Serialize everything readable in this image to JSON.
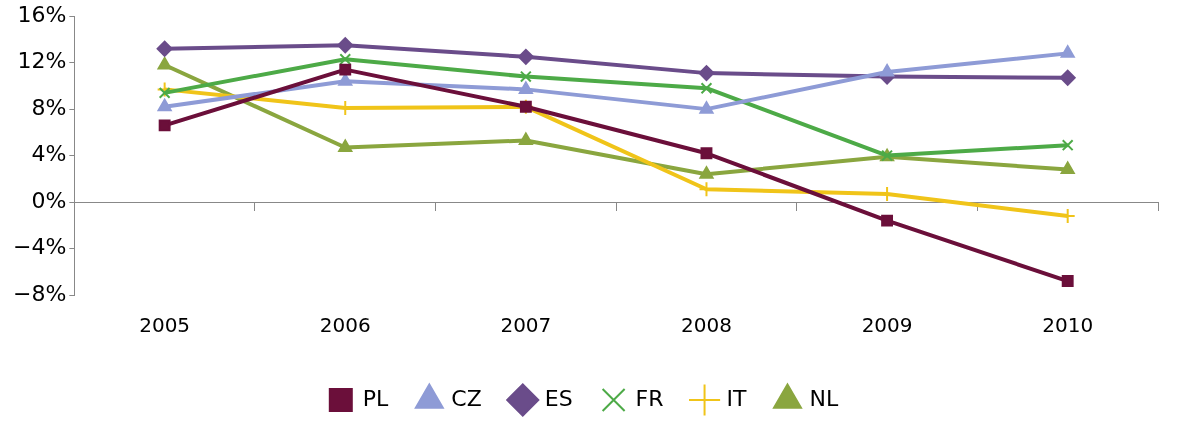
{
  "chart_data": {
    "type": "line",
    "categories": [
      "2005",
      "2006",
      "2007",
      "2008",
      "2009",
      "2010"
    ],
    "series": [
      {
        "name": "PL",
        "color": "#6b0f3a",
        "marker": "square",
        "values": [
          6.6,
          11.4,
          8.2,
          4.2,
          -1.6,
          -6.8
        ]
      },
      {
        "name": "CZ",
        "color": "#8e9bd6",
        "marker": "triangle",
        "values": [
          8.2,
          10.4,
          9.7,
          8.0,
          11.2,
          12.8
        ]
      },
      {
        "name": "ES",
        "color": "#6a4c8a",
        "marker": "diamond",
        "values": [
          13.2,
          13.5,
          12.5,
          11.1,
          10.8,
          10.7
        ]
      },
      {
        "name": "FR",
        "color": "#4daa47",
        "marker": "cross",
        "values": [
          9.4,
          12.3,
          10.8,
          9.8,
          4.0,
          4.9
        ]
      },
      {
        "name": "IT",
        "color": "#f0c419",
        "marker": "plus",
        "values": [
          9.7,
          8.1,
          8.2,
          1.1,
          0.7,
          -1.2
        ]
      },
      {
        "name": "NL",
        "color": "#8aa63f",
        "marker": "triangle",
        "values": [
          11.8,
          4.7,
          5.3,
          2.4,
          3.9,
          2.8
        ]
      }
    ],
    "ylim": [
      -8,
      16
    ],
    "yticks": [
      {
        "value": -8,
        "label": "−8%"
      },
      {
        "value": -4,
        "label": "−4%"
      },
      {
        "value": 0,
        "label": "0%"
      },
      {
        "value": 4,
        "label": "4%"
      },
      {
        "value": 8,
        "label": "8%"
      },
      {
        "value": 12,
        "label": "12%"
      },
      {
        "value": 16,
        "label": "16%"
      }
    ],
    "legend": "bottom",
    "line_style": "solid"
  }
}
